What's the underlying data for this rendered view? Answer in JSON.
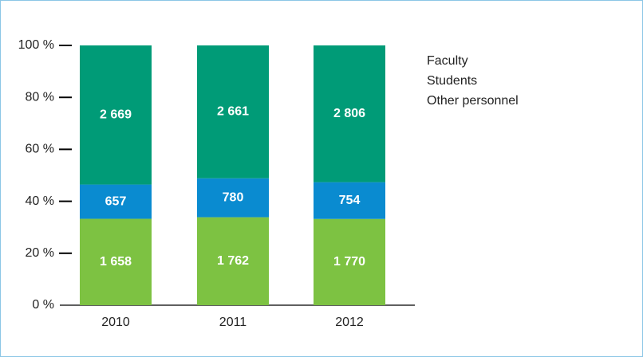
{
  "chart_data": {
    "type": "bar",
    "stack": "percent",
    "categories": [
      "2010",
      "2011",
      "2012"
    ],
    "series": [
      {
        "name": "Other personnel",
        "color": "#7dc242",
        "values": [
          1658,
          1762,
          1770
        ],
        "value_labels": [
          "1 658",
          "1 762",
          "1 770"
        ]
      },
      {
        "name": "Students",
        "color": "#0a8bd0",
        "values": [
          657,
          780,
          754
        ],
        "value_labels": [
          "657",
          "780",
          "754"
        ]
      },
      {
        "name": "Faculty",
        "color": "#009b77",
        "values": [
          2669,
          2661,
          2806
        ],
        "value_labels": [
          "2 669",
          "2 661",
          "2 806"
        ]
      }
    ],
    "ylim": [
      0,
      100
    ],
    "yticks": [
      {
        "value": 0,
        "label": "0 %"
      },
      {
        "value": 20,
        "label": "20 %"
      },
      {
        "value": 40,
        "label": "40 %"
      },
      {
        "value": 60,
        "label": "60 %"
      },
      {
        "value": 80,
        "label": "80 %"
      },
      {
        "value": 100,
        "label": "100 %"
      }
    ],
    "legend": "right"
  }
}
